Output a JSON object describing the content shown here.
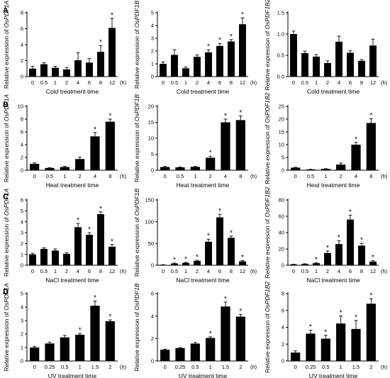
{
  "rows": [
    {
      "letter": "A",
      "xlabel": "Cold treatment time",
      "unit": "(h)"
    },
    {
      "letter": "B",
      "xlabel": "Heat treatment time",
      "unit": "(h)"
    },
    {
      "letter": "C",
      "xlabel": "NaCl treatment time",
      "unit": "(h)"
    },
    {
      "letter": "D",
      "xlabel": "UV treatment time",
      "unit": "(h)"
    }
  ],
  "ylabel_prefix": "Relative expression of ",
  "star_label": "*",
  "chart_data": [
    {
      "type": "bar",
      "row": "A",
      "gene": "OsPDF1A",
      "categories": [
        "0",
        "0.5",
        "1",
        "2",
        "4",
        "6",
        "8",
        "12"
      ],
      "values": [
        1.0,
        1.55,
        1.1,
        0.9,
        2.05,
        1.75,
        3.1,
        6.1
      ],
      "errors": [
        0.3,
        0.2,
        0.2,
        0.25,
        0.95,
        0.5,
        0.8,
        1.2
      ],
      "significant": [
        false,
        false,
        false,
        false,
        false,
        false,
        true,
        true
      ],
      "ylim": [
        0,
        8
      ],
      "yticks": [
        0,
        2,
        4,
        6,
        8
      ],
      "xlabel": "Cold treatment time",
      "ylabel": "Relative expression of OsPDF1A"
    },
    {
      "type": "bar",
      "row": "A",
      "gene": "OsPDF1B",
      "categories": [
        "0",
        "0.5",
        "1",
        "2",
        "4",
        "6",
        "8",
        "12"
      ],
      "values": [
        1.0,
        1.7,
        0.65,
        1.55,
        1.9,
        2.4,
        2.75,
        4.1
      ],
      "errors": [
        0.15,
        0.4,
        0.1,
        0.15,
        0.2,
        0.2,
        0.15,
        0.5
      ],
      "significant": [
        false,
        false,
        false,
        false,
        true,
        true,
        true,
        true
      ],
      "ylim": [
        0,
        5
      ],
      "yticks": [
        0,
        1,
        2,
        3,
        4,
        5
      ],
      "xlabel": "Cold treatment time",
      "ylabel": "Relative expression of OsPDF1B"
    },
    {
      "type": "bar",
      "row": "A",
      "gene": "OsPDF1B2",
      "categories": [
        "0",
        "0.5",
        "1",
        "2",
        "4",
        "6",
        "8",
        "12"
      ],
      "values": [
        1.0,
        0.55,
        0.47,
        0.32,
        0.82,
        0.56,
        0.37,
        0.73
      ],
      "errors": [
        0.07,
        0.05,
        0.05,
        0.05,
        0.13,
        0.05,
        0.03,
        0.15
      ],
      "significant": [
        false,
        false,
        false,
        false,
        false,
        false,
        false,
        false
      ],
      "ylim": [
        0,
        1.5
      ],
      "yticks": [
        0,
        0.5,
        1,
        1.5
      ],
      "ytick_labels": [
        "0.0",
        "0.5",
        "1.0",
        "1.5"
      ],
      "xlabel": "Cold treatment time",
      "ylabel": "Relative expression of OsPDF1B2"
    },
    {
      "type": "bar",
      "row": "B",
      "gene": "OsPDF1A",
      "categories": [
        "0",
        "0.5",
        "1",
        "2",
        "4",
        "8"
      ],
      "values": [
        1.0,
        0.35,
        0.5,
        1.75,
        5.3,
        7.6
      ],
      "errors": [
        0.15,
        0.05,
        0.1,
        0.3,
        0.6,
        0.4
      ],
      "significant": [
        false,
        false,
        false,
        false,
        true,
        true
      ],
      "ylim": [
        0,
        10
      ],
      "yticks": [
        0,
        2,
        4,
        6,
        8,
        10
      ],
      "xlabel": "Heat treatment time",
      "ylabel": "Relative expression of OsPDF1A"
    },
    {
      "type": "bar",
      "row": "B",
      "gene": "OsPDF1B",
      "categories": [
        "0",
        "0.5",
        "1",
        "2",
        "4",
        "8"
      ],
      "values": [
        1.0,
        0.9,
        1.05,
        3.9,
        15.0,
        15.7
      ],
      "errors": [
        0.15,
        0.1,
        0.15,
        0.5,
        1.0,
        1.3
      ],
      "significant": [
        false,
        false,
        false,
        true,
        true,
        true
      ],
      "ylim": [
        0,
        20
      ],
      "yticks": [
        0,
        5,
        10,
        15,
        20
      ],
      "xlabel": "Heat treatment time",
      "ylabel": "Relative expression of OsPDF1B"
    },
    {
      "type": "bar",
      "row": "B",
      "gene": "OsPDF1B2",
      "categories": [
        "0",
        "0.5",
        "1",
        "2",
        "4",
        "8"
      ],
      "values": [
        1.0,
        0.3,
        0.5,
        2.2,
        10.0,
        18.5
      ],
      "errors": [
        0.15,
        0.05,
        0.1,
        0.6,
        0.9,
        1.7
      ],
      "significant": [
        false,
        false,
        false,
        false,
        true,
        true
      ],
      "ylim": [
        0,
        25
      ],
      "yticks": [
        0,
        5,
        10,
        15,
        20,
        25
      ],
      "xlabel": "Heat treatment time",
      "ylabel": "Relative expression of OsPDF1B2"
    },
    {
      "type": "bar",
      "row": "C",
      "gene": "OsPDF1A",
      "categories": [
        "0",
        "0.5",
        "1",
        "2",
        "4",
        "6",
        "8",
        "12"
      ],
      "values": [
        1.0,
        1.5,
        1.35,
        1.05,
        3.5,
        2.8,
        4.7,
        1.7
      ],
      "errors": [
        0.1,
        0.1,
        0.15,
        0.1,
        0.35,
        0.2,
        0.2,
        0.2
      ],
      "significant": [
        false,
        false,
        false,
        false,
        true,
        true,
        true,
        true
      ],
      "ylim": [
        0,
        6
      ],
      "yticks": [
        0,
        1,
        2,
        3,
        4,
        5,
        6
      ],
      "xlabel": "NaCl treatment time",
      "ylabel": "Relative expression of OsPDF1A"
    },
    {
      "type": "bar",
      "row": "C",
      "gene": "OsPDF1B",
      "categories": [
        "0",
        "0.5",
        "1",
        "2",
        "4",
        "6",
        "8",
        "12"
      ],
      "values": [
        1.0,
        4.0,
        5.5,
        10.0,
        54.0,
        110.0,
        63.0,
        9.0
      ],
      "errors": [
        0.3,
        1.0,
        1.0,
        1.5,
        6.0,
        7.0,
        4.0,
        1.5
      ],
      "significant": [
        false,
        true,
        true,
        true,
        true,
        true,
        true,
        true
      ],
      "ylim": [
        0,
        150
      ],
      "yticks": [
        0,
        50,
        100,
        150
      ],
      "xlabel": "NaCl treatment time",
      "ylabel": "Relative expression of OsPDF1B"
    },
    {
      "type": "bar",
      "row": "C",
      "gene": "OsPDF1B2",
      "categories": [
        "0",
        "0.5",
        "1",
        "2",
        "4",
        "6",
        "8",
        "12"
      ],
      "values": [
        1.0,
        1.5,
        2.5,
        15.0,
        26.0,
        56.0,
        24.0,
        4.5
      ],
      "errors": [
        0.2,
        0.3,
        0.4,
        2.5,
        4.0,
        5.5,
        3.0,
        1.0
      ],
      "significant": [
        false,
        false,
        true,
        true,
        true,
        true,
        true,
        true
      ],
      "ylim": [
        0,
        80
      ],
      "yticks": [
        0,
        20,
        40,
        60,
        80
      ],
      "xlabel": "NaCl treatment time",
      "ylabel": "Relative expression of OsPDF1B2"
    },
    {
      "type": "bar",
      "row": "D",
      "gene": "OsPDF1A",
      "categories": [
        "0",
        "0.25",
        "0.5",
        "1",
        "1.5",
        "2"
      ],
      "values": [
        1.0,
        1.3,
        1.75,
        1.95,
        4.1,
        2.95
      ],
      "errors": [
        0.08,
        0.1,
        0.15,
        0.1,
        0.35,
        0.1
      ],
      "significant": [
        false,
        false,
        false,
        true,
        true,
        true
      ],
      "ylim": [
        0,
        5
      ],
      "yticks": [
        0,
        1,
        2,
        3,
        4,
        5
      ],
      "xlabel": "UV treatment time",
      "ylabel": "Relative expression of OsPDF1A"
    },
    {
      "type": "bar",
      "row": "D",
      "gene": "OsPDF1B",
      "categories": [
        "0",
        "0.25",
        "0.5",
        "1",
        "1.5",
        "2"
      ],
      "values": [
        1.0,
        1.15,
        1.55,
        2.05,
        4.85,
        3.95
      ],
      "errors": [
        0.05,
        0.05,
        0.1,
        0.1,
        0.4,
        0.2
      ],
      "significant": [
        false,
        false,
        false,
        true,
        true,
        true
      ],
      "ylim": [
        0,
        6
      ],
      "yticks": [
        0,
        2,
        4,
        6
      ],
      "xlabel": "UV treatment time",
      "ylabel": "Relative expression of OsPDF1B"
    },
    {
      "type": "bar",
      "row": "D",
      "gene": "OsPDF1B2",
      "categories": [
        "0",
        "0.25",
        "0.5",
        "1",
        "1.5",
        "2"
      ],
      "values": [
        1.0,
        3.25,
        2.65,
        4.45,
        3.8,
        6.8
      ],
      "errors": [
        0.2,
        0.4,
        0.4,
        0.9,
        1.0,
        0.6
      ],
      "significant": [
        false,
        true,
        true,
        true,
        true,
        true
      ],
      "ylim": [
        0,
        8
      ],
      "yticks": [
        0,
        2,
        4,
        6,
        8
      ],
      "xlabel": "UV treatment time",
      "ylabel": "Relative expression of OsPDF1B2"
    }
  ]
}
